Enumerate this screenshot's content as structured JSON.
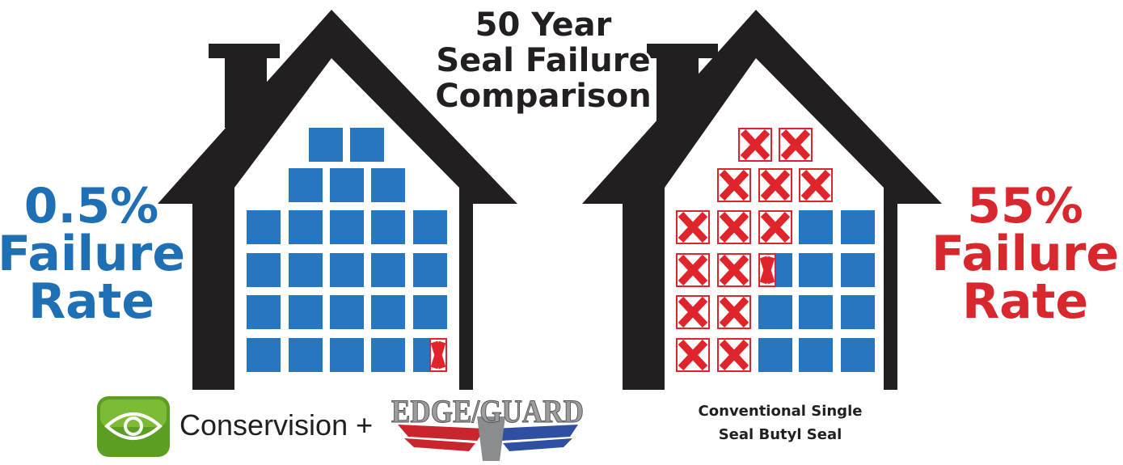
{
  "header": {
    "title_lines": [
      "50 Year",
      "Seal Failure",
      "Comparison"
    ]
  },
  "left": {
    "rate_lines": [
      "0.5%",
      "Failure",
      "Rate"
    ],
    "brand": "Conservision +",
    "logo": "EDGE/GUARD"
  },
  "right": {
    "rate_lines": [
      "55%",
      "Failure",
      "Rate"
    ],
    "caption_lines": [
      "Conventional Single",
      "Seal Butyl Seal"
    ]
  }
}
